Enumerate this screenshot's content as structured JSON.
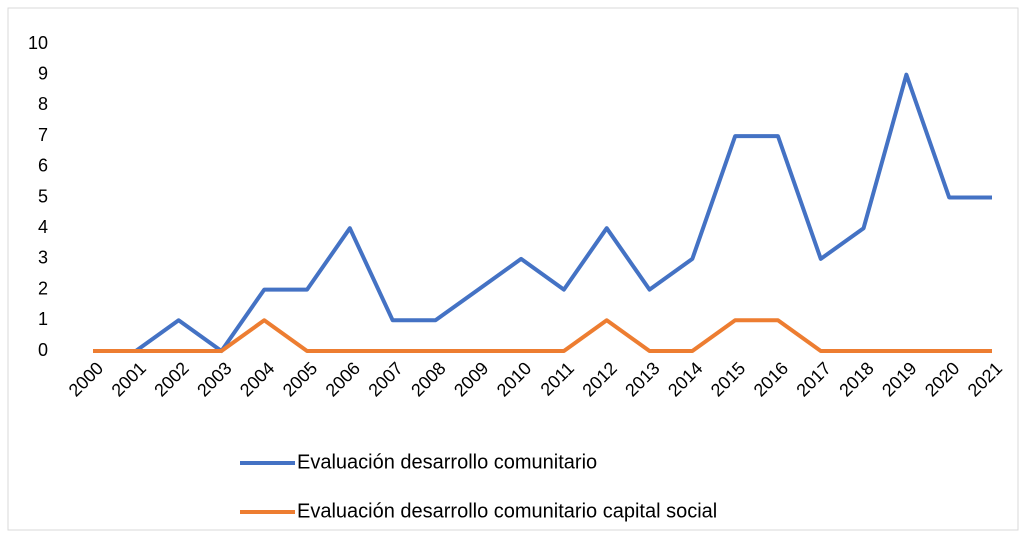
{
  "chart_data": {
    "type": "line",
    "categories": [
      "2000",
      "2001",
      "2002",
      "2003",
      "2004",
      "2005",
      "2006",
      "2007",
      "2008",
      "2009",
      "2010",
      "2011",
      "2012",
      "2013",
      "2014",
      "2015",
      "2016",
      "2017",
      "2018",
      "2019",
      "2020",
      "2021"
    ],
    "series": [
      {
        "name": "Evaluación desarrollo comunitario",
        "color": "#4472c4",
        "values": [
          0,
          0,
          1,
          0,
          2,
          2,
          4,
          1,
          1,
          2,
          3,
          2,
          4,
          2,
          3,
          7,
          7,
          3,
          4,
          9,
          5,
          5
        ]
      },
      {
        "name": "Evaluación desarrollo comunitario capital social",
        "color": "#ed7d31",
        "values": [
          0,
          0,
          0,
          0,
          1,
          0,
          0,
          0,
          0,
          0,
          0,
          0,
          1,
          0,
          0,
          1,
          1,
          0,
          0,
          0,
          0,
          0
        ]
      }
    ],
    "ylim": [
      0,
      10
    ],
    "yticks": [
      0,
      1,
      2,
      3,
      4,
      5,
      6,
      7,
      8,
      9,
      10
    ],
    "grid": false,
    "legend": "bottom"
  }
}
